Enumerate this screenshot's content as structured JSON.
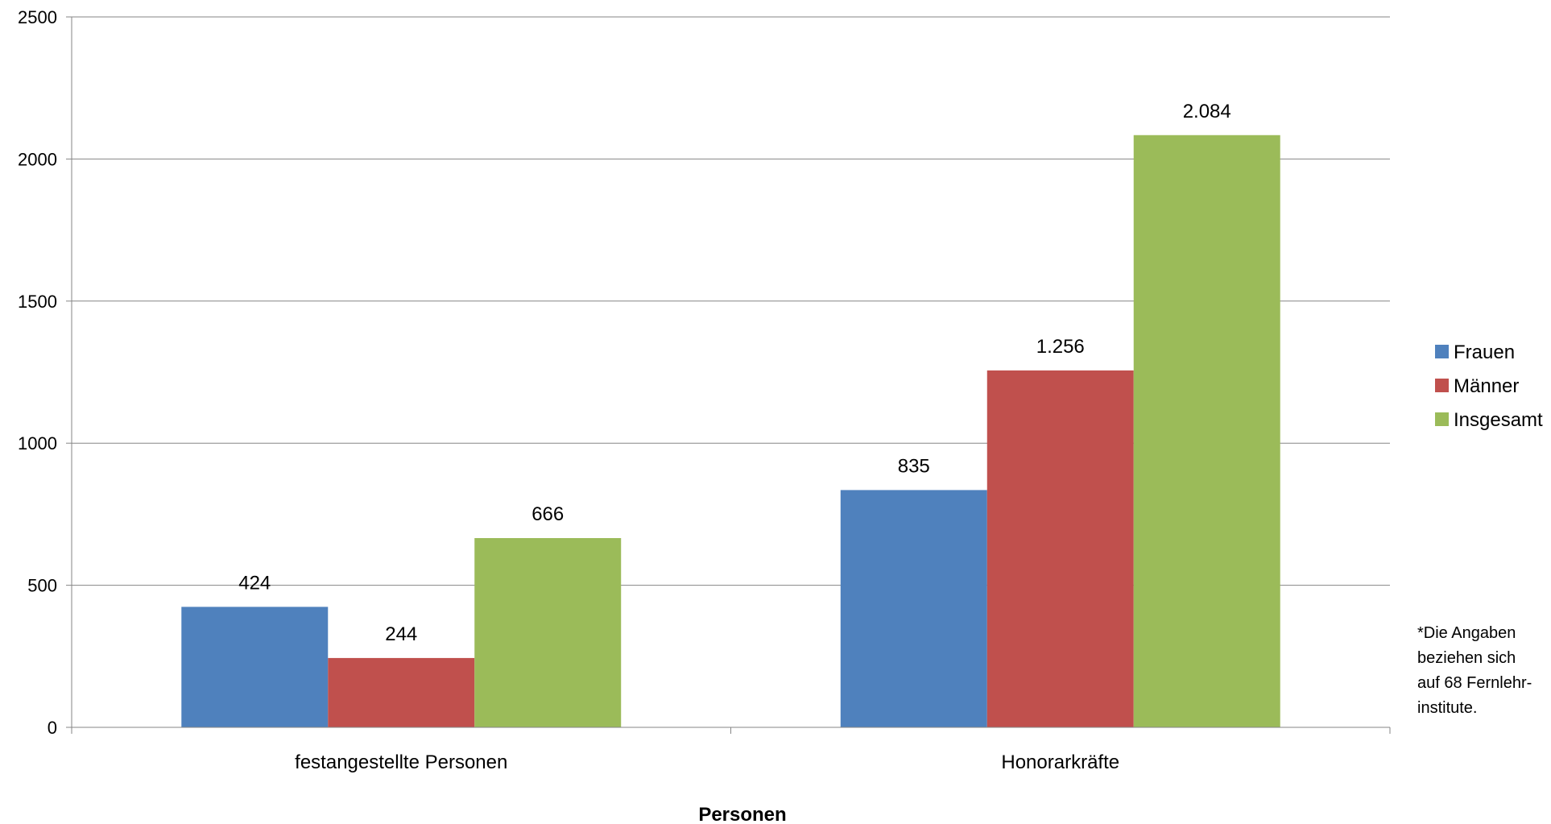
{
  "chart_data": {
    "type": "bar",
    "categories": [
      "festangestellte Personen",
      "Honorarkräfte"
    ],
    "series": [
      {
        "name": "Frauen",
        "color": "#4F81BD",
        "values": [
          424,
          835
        ],
        "labels": [
          "424",
          "835"
        ]
      },
      {
        "name": "Männer",
        "color": "#C0504D",
        "values": [
          244,
          1256
        ],
        "labels": [
          "244",
          "1.256"
        ]
      },
      {
        "name": "Insgesamt",
        "color": "#9BBB59",
        "values": [
          666,
          2084
        ],
        "labels": [
          "666",
          "2.084"
        ]
      }
    ],
    "xlabel": "Personen",
    "ylabel": "",
    "ylim": [
      0,
      2500
    ],
    "yticks": [
      "0",
      "500",
      "1000",
      "1500",
      "2000",
      "2500"
    ],
    "grid": true,
    "legend_position": "right",
    "note": [
      "*Die Angaben",
      "beziehen sich",
      "auf 68 Fernlehr-",
      "institute."
    ]
  }
}
